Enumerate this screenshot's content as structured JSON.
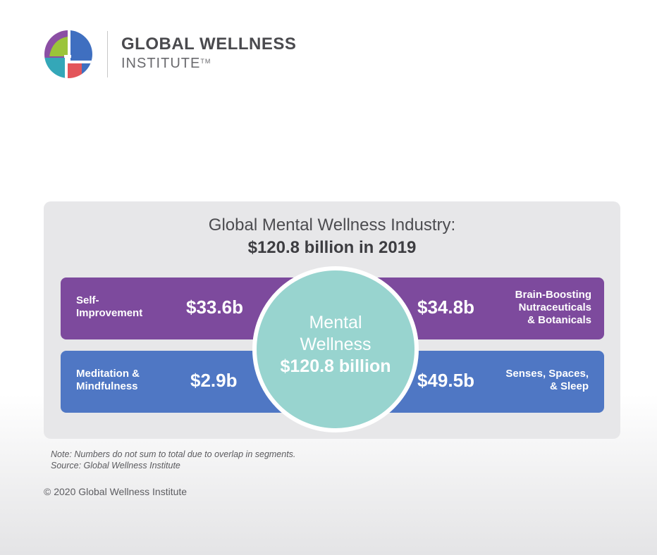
{
  "header": {
    "brand_name": "GLOBAL WELLNESS",
    "brand_sub": "INSTITUTE",
    "trademark": "TM"
  },
  "panel": {
    "title": "Global Mental Wellness Industry:",
    "subtitle": "$120.8 billion in 2019",
    "segments": [
      {
        "label_lines": [
          "Self-",
          "Improvement"
        ],
        "value": "$33.6b",
        "color": "#7d4a9d"
      },
      {
        "label_lines": [
          "Brain-Boosting",
          "Nutraceuticals",
          "& Botanicals"
        ],
        "value": "$34.8b",
        "color": "#7d4a9d"
      },
      {
        "label_lines": [
          "Meditation &",
          "Mindfulness"
        ],
        "value": "$2.9b",
        "color": "#4f77c4"
      },
      {
        "label_lines": [
          "Senses, Spaces,",
          "& Sleep"
        ],
        "value": "$49.5b",
        "color": "#4f77c4"
      }
    ],
    "center": {
      "line1": "Mental",
      "line2": "Wellness",
      "value": "$120.8 billion",
      "color": "#98d4cf"
    }
  },
  "notes": {
    "note": "Note: Numbers do not sum to total due to overlap in segments.",
    "source": "Source: Global Wellness Institute"
  },
  "footer": {
    "copyright": "© 2020 Global Wellness Institute"
  }
}
